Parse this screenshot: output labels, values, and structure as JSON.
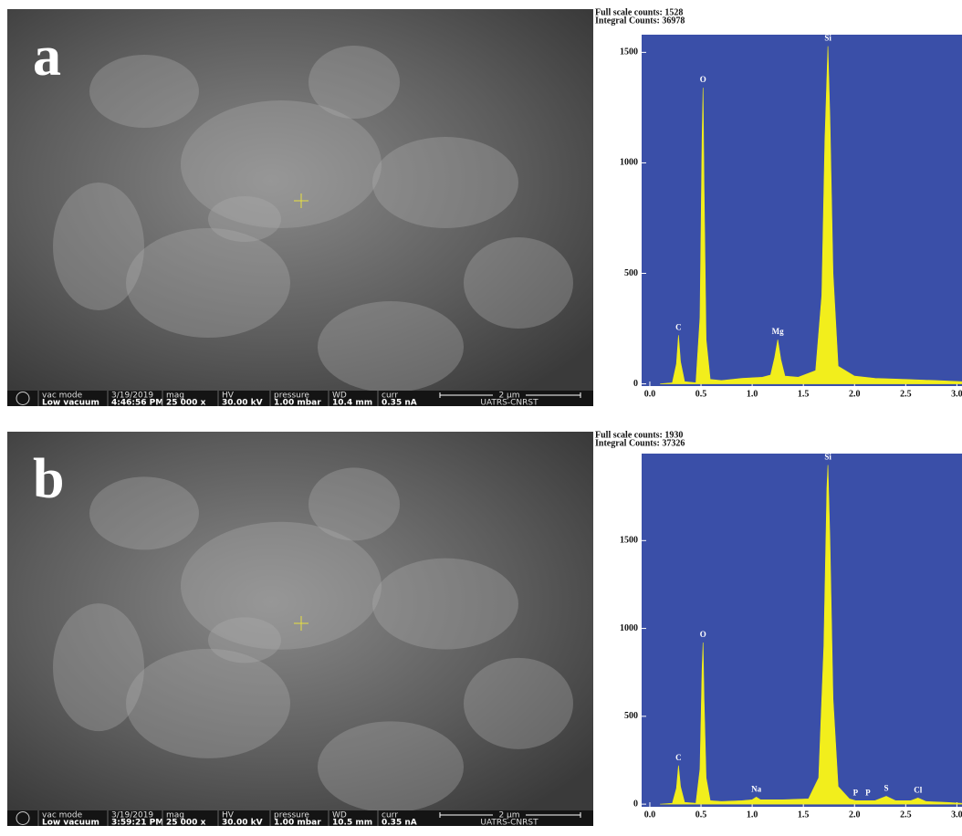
{
  "panels": [
    {
      "label": "a",
      "info": [
        [
          "vac mode",
          "Low vacuum"
        ],
        [
          "3/19/2019",
          "4:46:56 PM"
        ],
        [
          "mag",
          "25 000 x"
        ],
        [
          "HV",
          "30.00 kV"
        ],
        [
          "pressure",
          "1.00 mbar"
        ],
        [
          "WD",
          "10.4 mm"
        ],
        [
          "curr",
          "0.35 nA"
        ]
      ],
      "scale": "2 µm",
      "org": "UATRS-CNRST"
    },
    {
      "label": "b",
      "info": [
        [
          "vac mode",
          "Low vacuum"
        ],
        [
          "3/19/2019",
          "3:59:21 PM"
        ],
        [
          "mag",
          "25 000 x"
        ],
        [
          "HV",
          "30.00 kV"
        ],
        [
          "pressure",
          "1.00 mbar"
        ],
        [
          "WD",
          "10.5 mm"
        ],
        [
          "curr",
          "0.35 nA"
        ]
      ],
      "scale": "2 µm",
      "org": "UATRS-CNRST"
    }
  ],
  "chart_data": [
    {
      "type": "area",
      "header": [
        "Full scale counts: 1528",
        "Integral Counts: 36978"
      ],
      "color": "#f2ee1c",
      "x": [
        0.1,
        0.22,
        0.26,
        0.28,
        0.3,
        0.34,
        0.45,
        0.49,
        0.51,
        0.52,
        0.53,
        0.55,
        0.59,
        0.7,
        0.9,
        1.1,
        1.18,
        1.22,
        1.25,
        1.28,
        1.32,
        1.45,
        1.62,
        1.68,
        1.71,
        1.74,
        1.76,
        1.79,
        1.84,
        2.0,
        2.2,
        2.5,
        2.8,
        3.05
      ],
      "values": [
        0,
        5,
        90,
        220,
        100,
        10,
        5,
        300,
        1100,
        1340,
        900,
        200,
        20,
        15,
        25,
        30,
        40,
        120,
        200,
        110,
        35,
        30,
        60,
        400,
        1100,
        1528,
        1200,
        500,
        80,
        35,
        25,
        20,
        15,
        10
      ],
      "xlim": [
        -0.08,
        3.05
      ],
      "ylim": [
        -10,
        1580
      ],
      "xticks": [
        {
          "value": 0,
          "label": "0.0"
        },
        0.5,
        {
          "value": 1,
          "label": "1.0"
        },
        1.5,
        {
          "value": 2,
          "label": "2.0"
        },
        2.5,
        {
          "value": 3,
          "label": "3.0"
        }
      ],
      "yticks": [
        0,
        500,
        1000,
        1500
      ],
      "peak_labels": [
        {
          "label": "C",
          "x": 0.28,
          "y": 220
        },
        {
          "label": "O",
          "x": 0.52,
          "y": 1340
        },
        {
          "label": "Mg",
          "x": 1.25,
          "y": 200
        },
        {
          "label": "Si",
          "x": 1.74,
          "y": 1528
        }
      ]
    },
    {
      "type": "area",
      "header": [
        "Full scale counts: 1930",
        "Integral Counts: 37326"
      ],
      "color": "#f2ee1c",
      "x": [
        0.1,
        0.22,
        0.26,
        0.28,
        0.3,
        0.34,
        0.45,
        0.49,
        0.51,
        0.52,
        0.53,
        0.55,
        0.59,
        0.7,
        0.9,
        1.0,
        1.04,
        1.08,
        1.3,
        1.55,
        1.65,
        1.7,
        1.73,
        1.74,
        1.76,
        1.79,
        1.84,
        1.95,
        2.01,
        2.07,
        2.2,
        2.31,
        2.4,
        2.55,
        2.62,
        2.7,
        2.9,
        3.05
      ],
      "values": [
        0,
        5,
        90,
        220,
        100,
        10,
        5,
        200,
        760,
        920,
        600,
        150,
        20,
        15,
        20,
        25,
        40,
        25,
        25,
        30,
        150,
        900,
        1800,
        1930,
        1500,
        600,
        100,
        30,
        20,
        20,
        20,
        45,
        20,
        20,
        35,
        15,
        10,
        5
      ],
      "xlim": [
        -0.08,
        3.05
      ],
      "ylim": [
        -15,
        1995
      ],
      "xticks": [
        {
          "value": 0,
          "label": "0.0"
        },
        0.5,
        {
          "value": 1,
          "label": "1.0"
        },
        1.5,
        {
          "value": 2,
          "label": "2.0"
        },
        2.5,
        {
          "value": 3,
          "label": "3.0"
        }
      ],
      "yticks": [
        0,
        500,
        1000,
        1500
      ],
      "peak_labels": [
        {
          "label": "C",
          "x": 0.28,
          "y": 220
        },
        {
          "label": "O",
          "x": 0.52,
          "y": 920
        },
        {
          "label": "Na",
          "x": 1.04,
          "y": 40
        },
        {
          "label": "Si",
          "x": 1.74,
          "y": 1930
        },
        {
          "label": "P",
          "x": 2.01,
          "y": 20
        },
        {
          "label": "P",
          "x": 2.13,
          "y": 20
        },
        {
          "label": "S",
          "x": 2.31,
          "y": 45
        },
        {
          "label": "Cl",
          "x": 2.62,
          "y": 35
        }
      ]
    }
  ]
}
